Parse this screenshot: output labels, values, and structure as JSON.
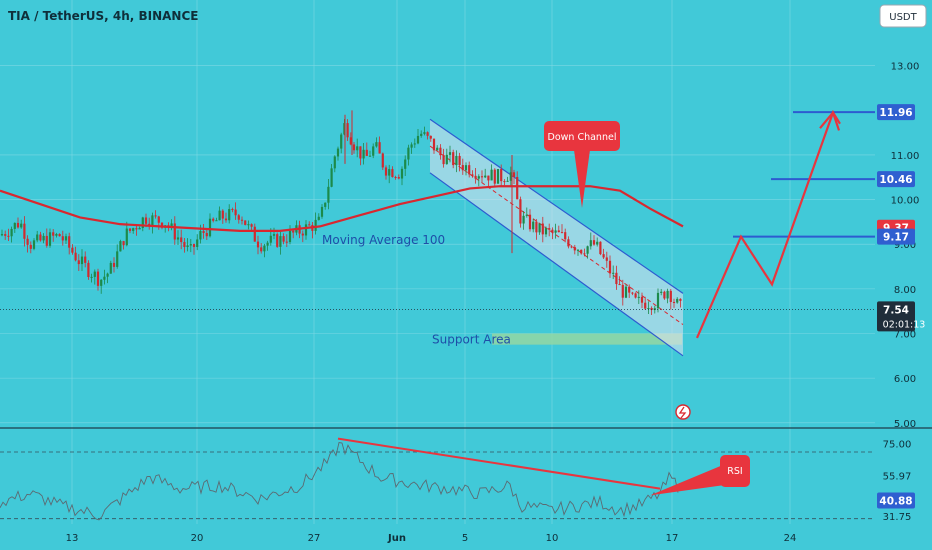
{
  "title": "TIA / TetherUS, 4h, BINANCE",
  "currency": "USDT",
  "colors": {
    "background": "#41c9d8",
    "candle_up": "#1c8a4a",
    "candle_down": "#d1292e",
    "moving_average": "#d9272f",
    "channel": "#2d5bd0",
    "annotation": "#e8353e",
    "support": "#8fd6a6",
    "rsi_line": "#5b6a72",
    "price_tag_blue": "#2f5fd0",
    "price_tag_red": "#e8353e",
    "price_tag_dark": "#1f2d3a"
  },
  "chart_data": [
    {
      "type": "candlestick",
      "title": "TIA / TetherUS, 4h, BINANCE",
      "x_tick_labels": [
        "13",
        "20",
        "27",
        "Jun",
        "5",
        "10",
        "17",
        "24"
      ],
      "y_ticks": [
        5.0,
        6.0,
        7.0,
        8.0,
        9.0,
        10.0,
        11.0,
        13.0
      ],
      "y_tick_labels": [
        "5.00",
        "6.00",
        "7.00",
        "8.00",
        "9.00",
        "10.00",
        "11.00",
        "13.00"
      ],
      "y_range": [
        4.95,
        13.8
      ],
      "price_keypoints": [
        [
          0,
          9.2
        ],
        [
          20,
          9.5
        ],
        [
          30,
          9.0
        ],
        [
          60,
          9.2
        ],
        [
          80,
          8.6
        ],
        [
          100,
          8.2
        ],
        [
          110,
          8.4
        ],
        [
          125,
          9.2
        ],
        [
          145,
          9.6
        ],
        [
          165,
          9.5
        ],
        [
          180,
          9.1
        ],
        [
          190,
          8.8
        ],
        [
          200,
          9.2
        ],
        [
          220,
          9.6
        ],
        [
          240,
          9.7
        ],
        [
          250,
          9.3
        ],
        [
          260,
          9.0
        ],
        [
          280,
          9.1
        ],
        [
          300,
          9.3
        ],
        [
          320,
          9.5
        ],
        [
          335,
          11.0
        ],
        [
          345,
          11.7
        ],
        [
          355,
          11.2
        ],
        [
          365,
          10.9
        ],
        [
          375,
          11.2
        ],
        [
          385,
          10.7
        ],
        [
          400,
          10.6
        ],
        [
          410,
          11.2
        ],
        [
          420,
          11.5
        ],
        [
          430,
          11.3
        ],
        [
          440,
          11.0
        ],
        [
          460,
          10.8
        ],
        [
          480,
          10.6
        ],
        [
          500,
          10.5
        ],
        [
          512,
          10.6
        ],
        [
          520,
          9.6
        ],
        [
          540,
          9.3
        ],
        [
          560,
          9.2
        ],
        [
          580,
          8.9
        ],
        [
          595,
          9.0
        ],
        [
          605,
          8.6
        ],
        [
          620,
          8.0
        ],
        [
          635,
          7.7
        ],
        [
          655,
          7.7
        ],
        [
          668,
          8.0
        ],
        [
          675,
          7.7
        ],
        [
          683,
          7.5
        ]
      ],
      "moving_average": {
        "label": "Moving Average 100",
        "points": [
          [
            0,
            10.2
          ],
          [
            40,
            9.9
          ],
          [
            80,
            9.6
          ],
          [
            120,
            9.45
          ],
          [
            160,
            9.4
          ],
          [
            200,
            9.35
          ],
          [
            240,
            9.3
          ],
          [
            280,
            9.3
          ],
          [
            320,
            9.4
          ],
          [
            360,
            9.65
          ],
          [
            400,
            9.9
          ],
          [
            440,
            10.1
          ],
          [
            470,
            10.25
          ],
          [
            500,
            10.3
          ],
          [
            530,
            10.3
          ],
          [
            560,
            10.3
          ],
          [
            590,
            10.3
          ],
          [
            620,
            10.2
          ],
          [
            650,
            9.8
          ],
          [
            683,
            9.4
          ]
        ]
      },
      "annotations": {
        "channel_label": "Down Channel",
        "support_label": "Support Area",
        "support_range": [
          6.75,
          7.0
        ]
      },
      "price_tags": [
        {
          "label": "11.96",
          "value": 11.96,
          "style": "blue"
        },
        {
          "label": "10.46",
          "value": 10.46,
          "style": "blue"
        },
        {
          "label": "9.37",
          "value": 9.37,
          "style": "red"
        },
        {
          "label": "9.17",
          "value": 9.17,
          "style": "blue"
        },
        {
          "label": "7.54",
          "value": 7.54,
          "style": "dark",
          "sublabel": "02:01:13"
        }
      ],
      "forecast_path": [
        [
          0,
          6.9
        ],
        [
          1,
          9.17
        ],
        [
          2,
          8.1
        ],
        [
          3,
          11.95
        ],
        [
          4,
          11.7
        ]
      ]
    },
    {
      "type": "line",
      "title": "RSI",
      "y_ticks": [
        31.75,
        55.97,
        75.0
      ],
      "y_tick_labels": [
        "31.75",
        "55.97",
        "75.00"
      ],
      "y_range": [
        28,
        82
      ],
      "guide_levels": [
        70,
        30
      ],
      "current_value": {
        "label": "40.88",
        "value": 40.88
      },
      "values_keypoints": [
        [
          0,
          40
        ],
        [
          30,
          45
        ],
        [
          60,
          38
        ],
        [
          100,
          32
        ],
        [
          150,
          55
        ],
        [
          180,
          48
        ],
        [
          220,
          50
        ],
        [
          260,
          42
        ],
        [
          300,
          50
        ],
        [
          330,
          65
        ],
        [
          340,
          75
        ],
        [
          350,
          70
        ],
        [
          380,
          55
        ],
        [
          420,
          50
        ],
        [
          450,
          48
        ],
        [
          480,
          45
        ],
        [
          510,
          50
        ],
        [
          520,
          38
        ],
        [
          550,
          35
        ],
        [
          580,
          38
        ],
        [
          600,
          40
        ],
        [
          620,
          35
        ],
        [
          640,
          38
        ],
        [
          660,
          45
        ],
        [
          670,
          55
        ],
        [
          680,
          48
        ]
      ],
      "trendline_label": "RSI"
    }
  ]
}
